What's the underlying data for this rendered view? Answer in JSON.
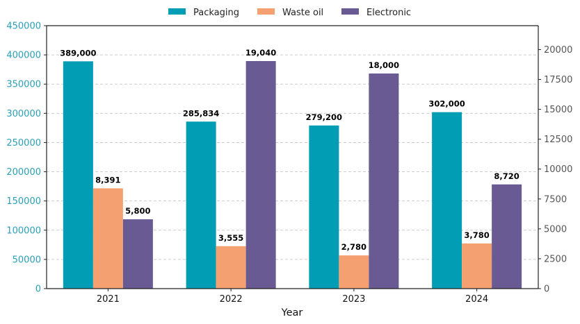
{
  "chart_data": {
    "type": "bar",
    "title": "",
    "xlabel": "Year",
    "ylabel": "",
    "y2label": "",
    "categories": [
      "2021",
      "2022",
      "2023",
      "2024"
    ],
    "series": [
      {
        "name": "Packaging",
        "axis": "left",
        "color": "#009db5",
        "values": [
          389000,
          285834,
          279200,
          302000
        ],
        "labels": [
          "389,000",
          "285,834",
          "279,200",
          "302,000"
        ]
      },
      {
        "name": "Waste oil",
        "axis": "right",
        "color": "#f5a070",
        "values": [
          8391,
          3555,
          2780,
          3780
        ],
        "labels": [
          "8,391",
          "3,555",
          "2,780",
          "3,780"
        ]
      },
      {
        "name": "Electronic",
        "axis": "right",
        "color": "#6a5a93",
        "values": [
          5800,
          19040,
          18000,
          8720
        ],
        "labels": [
          "5,800",
          "19,040",
          "18,000",
          "8,720"
        ]
      }
    ],
    "ylim": [
      0,
      450000
    ],
    "y2lim": [
      0,
      22000
    ],
    "yticks": [
      0,
      50000,
      100000,
      150000,
      200000,
      250000,
      300000,
      350000,
      400000,
      450000
    ],
    "y2ticks": [
      0,
      2500,
      5000,
      7500,
      10000,
      12500,
      15000,
      17500,
      20000
    ],
    "grid": true,
    "legend_position": "top-center",
    "left_tick_color": "#2a9fb5",
    "right_tick_color": "#555555"
  }
}
